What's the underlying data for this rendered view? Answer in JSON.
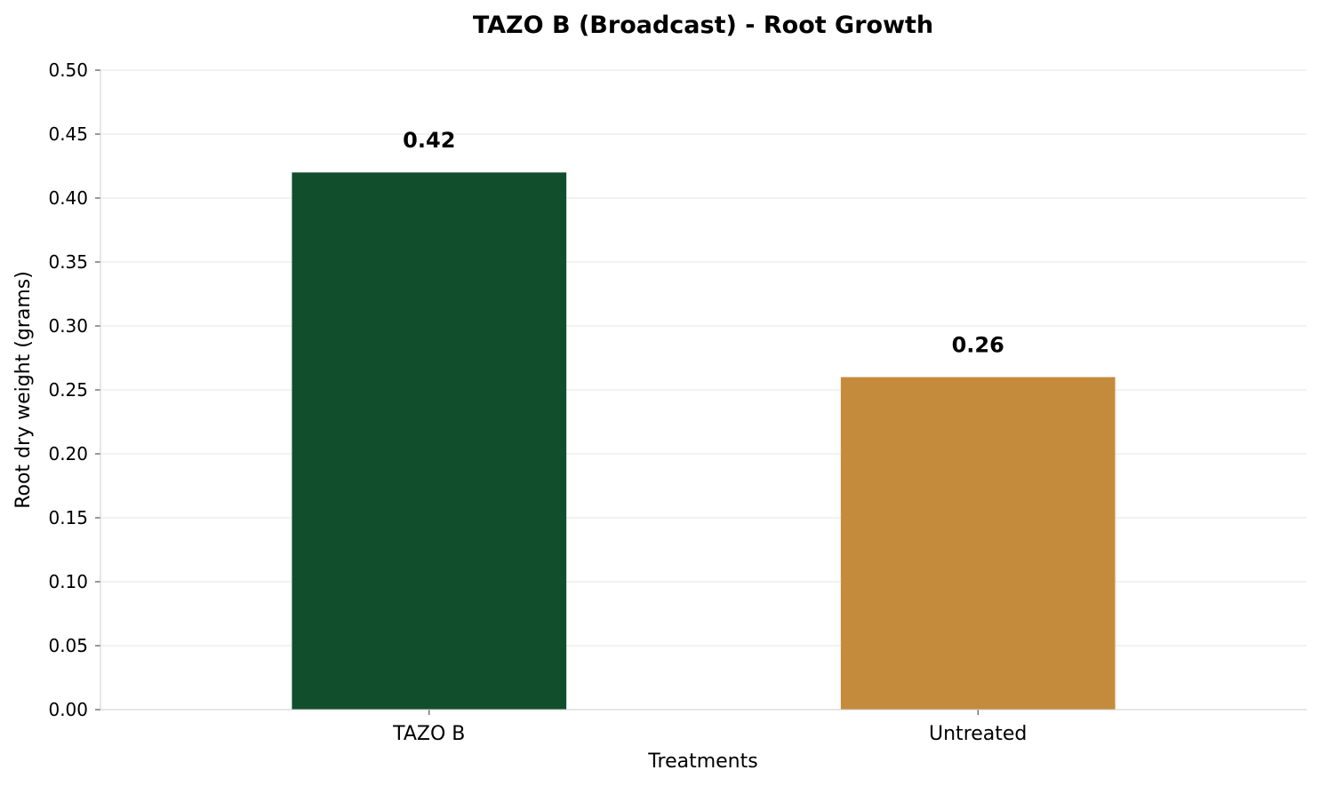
{
  "chart_data": {
    "type": "bar",
    "title": "TAZO B (Broadcast) - Root Growth",
    "xlabel": "Treatments",
    "ylabel": "Root dry weight (grams)",
    "categories": [
      "TAZO B",
      "Untreated"
    ],
    "values": [
      0.42,
      0.26
    ],
    "data_labels": [
      "0.42",
      "0.26"
    ],
    "colors": [
      "#114e2c",
      "#c58b3c"
    ],
    "ylim": [
      0,
      0.5
    ],
    "yticks": [
      "0.00",
      "0.05",
      "0.10",
      "0.15",
      "0.20",
      "0.25",
      "0.30",
      "0.35",
      "0.40",
      "0.45",
      "0.50"
    ],
    "ytick_values": [
      0,
      0.05,
      0.1,
      0.15,
      0.2,
      0.25,
      0.3,
      0.35,
      0.4,
      0.45,
      0.5
    ],
    "grid": true,
    "grid_color": "#e6e6e6",
    "axis_color": "#cccccc"
  }
}
